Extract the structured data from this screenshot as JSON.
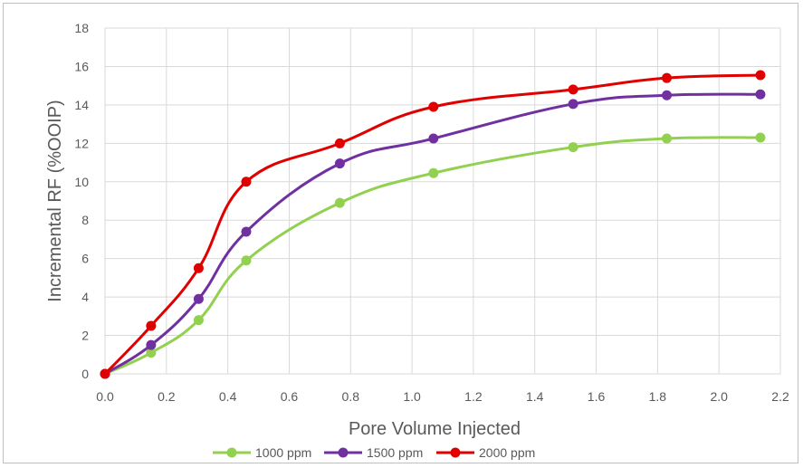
{
  "chart_data": {
    "type": "line",
    "xlabel": "Pore Volume Injected",
    "ylabel": "Incremental RF (%OOIP)",
    "xlim": [
      0,
      2.2
    ],
    "ylim": [
      0,
      18
    ],
    "xticks": [
      "0.0",
      "0.2",
      "0.4",
      "0.6",
      "0.8",
      "1.0",
      "1.2",
      "1.4",
      "1.6",
      "1.8",
      "2.0",
      "2.2"
    ],
    "yticks": [
      "0",
      "2",
      "4",
      "6",
      "8",
      "10",
      "12",
      "14",
      "16",
      "18"
    ],
    "grid": true,
    "legend_position": "bottom",
    "series": [
      {
        "name": "1000 ppm",
        "color": "#92d050",
        "x": [
          0.0,
          0.15,
          0.305,
          0.46,
          0.765,
          1.07,
          1.525,
          1.83,
          2.135
        ],
        "y": [
          0.0,
          1.1,
          2.8,
          5.9,
          8.9,
          10.45,
          11.8,
          12.25,
          12.3
        ]
      },
      {
        "name": "1500 ppm",
        "color": "#7030a0",
        "x": [
          0.0,
          0.15,
          0.305,
          0.46,
          0.765,
          1.07,
          1.525,
          1.83,
          2.135
        ],
        "y": [
          0.0,
          1.5,
          3.9,
          7.4,
          10.95,
          12.25,
          14.05,
          14.5,
          14.55
        ]
      },
      {
        "name": "2000 ppm",
        "color": "#e00000",
        "x": [
          0.0,
          0.15,
          0.305,
          0.46,
          0.765,
          1.07,
          1.525,
          1.83,
          2.135
        ],
        "y": [
          0.0,
          2.5,
          5.5,
          10.0,
          12.0,
          13.9,
          14.8,
          15.4,
          15.55
        ]
      }
    ]
  }
}
